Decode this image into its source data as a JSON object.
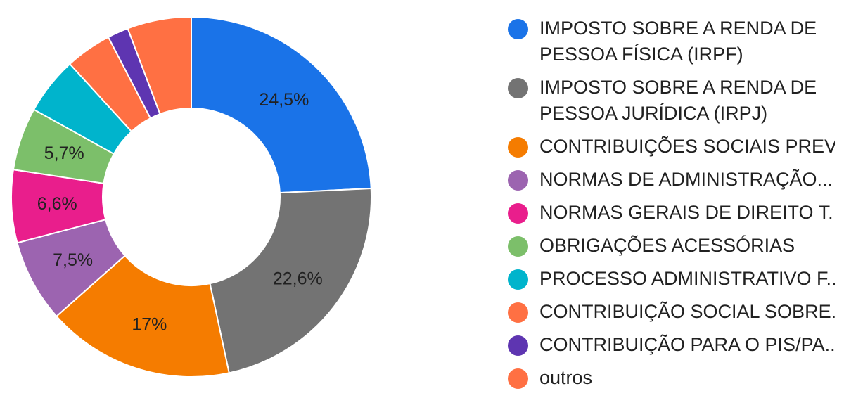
{
  "chart_data": {
    "type": "pie",
    "donut": true,
    "legend_position": "right",
    "slices": [
      {
        "label": "IMPOSTO SOBRE A RENDA DE PESSOA FÍSICA (IRPF)",
        "value": 24.5,
        "display": "24,5%",
        "color": "#1a73e8"
      },
      {
        "label": "IMPOSTO SOBRE A RENDA DE PESSOA JURÍDICA (IRPJ)",
        "value": 22.6,
        "display": "22,6%",
        "color": "#737373"
      },
      {
        "label": "CONTRIBUIÇÕES SOCIAIS PREV...",
        "value": 17,
        "display": "17%",
        "color": "#f57c00"
      },
      {
        "label": "NORMAS DE ADMINISTRAÇÃO...",
        "value": 7.5,
        "display": "7,5%",
        "color": "#9c64b0"
      },
      {
        "label": "NORMAS GERAIS DE DIREITO T...",
        "value": 6.6,
        "display": "6,6%",
        "color": "#e91e8c"
      },
      {
        "label": "OBRIGAÇÕES ACESSÓRIAS",
        "value": 5.7,
        "display": "5,7%",
        "color": "#7cbf6a"
      },
      {
        "label": "PROCESSO ADMINISTRATIVO F...",
        "value": 5.2,
        "display": "",
        "color": "#00b4cc"
      },
      {
        "label": "CONTRIBUIÇÃO SOCIAL SOBRE...",
        "value": 4.2,
        "display": "",
        "color": "#ff7043"
      },
      {
        "label": "CONTRIBUIÇÃO PARA O PIS/PA...",
        "value": 1.9,
        "display": "",
        "color": "#5e35b1"
      },
      {
        "label": "outros",
        "value": 5.8,
        "display": "",
        "color": "#ff7043"
      }
    ]
  }
}
